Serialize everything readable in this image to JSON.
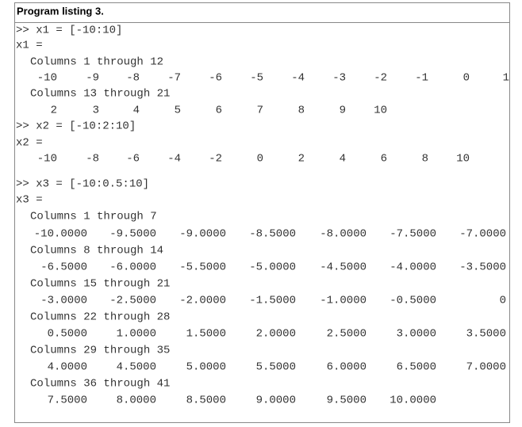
{
  "title": "Program listing 3.",
  "lines": [
    {
      "text": ">> x1 = [-10:10]"
    },
    {
      "text": "x1 ="
    },
    {
      "text": "Columns 1 through 12"
    },
    {
      "cells": [
        "-10",
        "-9",
        "-8",
        "-7",
        "-6",
        "-5",
        "-4",
        "-3",
        "-2",
        "-1",
        "0",
        "1"
      ]
    },
    {
      "text": "Columns 13 through 21"
    },
    {
      "cells": [
        "2",
        "3",
        "4",
        "5",
        "6",
        "7",
        "8",
        "9",
        "10"
      ]
    },
    {
      "text": ">> x2 = [-10:2:10]"
    },
    {
      "text": "x2 ="
    },
    {
      "cells": [
        "-10",
        "-8",
        "-6",
        "-4",
        "-2",
        "0",
        "2",
        "4",
        "6",
        "8",
        "10"
      ]
    },
    {
      "text": ">> x3 = [-10:0.5:10]"
    },
    {
      "text": "x3 ="
    },
    {
      "text": "Columns 1 through 7"
    },
    {
      "cells": [
        "-10.0000",
        "-9.5000",
        "-9.0000",
        "-8.5000",
        "-8.0000",
        "-7.5000",
        "-7.0000"
      ]
    },
    {
      "text": "Columns 8 through 14"
    },
    {
      "cells": [
        "-6.5000",
        "-6.0000",
        "-5.5000",
        "-5.0000",
        "-4.5000",
        "-4.0000",
        "-3.5000"
      ]
    },
    {
      "text": "Columns 15 through 21"
    },
    {
      "cells": [
        "-3.0000",
        "-2.5000",
        "-2.0000",
        "-1.5000",
        "-1.0000",
        "-0.5000",
        "0"
      ]
    },
    {
      "text": "Columns 22 through 28"
    },
    {
      "cells": [
        "0.5000",
        "1.0000",
        "1.5000",
        "2.0000",
        "2.5000",
        "3.0000",
        "3.5000"
      ]
    },
    {
      "text": "Columns 29 through 35"
    },
    {
      "cells": [
        "4.0000",
        "4.5000",
        "5.0000",
        "5.5000",
        "6.0000",
        "6.5000",
        "7.0000"
      ]
    },
    {
      "text": "Columns 36 through 41"
    },
    {
      "cells": [
        "7.5000",
        "8.0000",
        "8.5000",
        "9.0000",
        "9.5000",
        "10.0000"
      ]
    }
  ]
}
